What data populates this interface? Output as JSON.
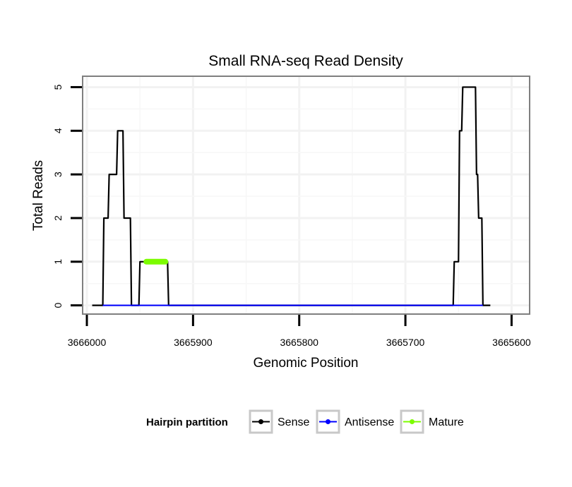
{
  "chart_data": {
    "type": "line",
    "title": "Small RNA-seq Read Density",
    "xlabel": "Genomic Position",
    "ylabel": "Total Reads",
    "x_reversed": true,
    "xlim": [
      3666004,
      3665583
    ],
    "ylim": [
      -0.2,
      5.25
    ],
    "x_ticks": [
      3666000,
      3665900,
      3665800,
      3665700,
      3665600
    ],
    "x_tick_labels": [
      "3666000",
      "3665900",
      "3665800",
      "3665700",
      "3665600"
    ],
    "y_ticks": [
      0,
      1,
      2,
      3,
      4,
      5
    ],
    "y_tick_labels": [
      "0",
      "1",
      "2",
      "3",
      "4",
      "5"
    ],
    "grid": true,
    "legend": {
      "title": "Hairpin partition",
      "position": "bottom",
      "entries": [
        {
          "name": "Sense",
          "color": "#000000"
        },
        {
          "name": "Antisense",
          "color": "#0000ff"
        },
        {
          "name": "Mature",
          "color": "#7cfc00"
        }
      ]
    },
    "series": [
      {
        "name": "Sense",
        "color": "#000000",
        "x": [
          3665995,
          3665985,
          3665984,
          3665980,
          3665979,
          3665972,
          3665971,
          3665966,
          3665965,
          3665959,
          3665958,
          3665951,
          3665950,
          3665945,
          3665944,
          3665938,
          3665937,
          3665924,
          3665923,
          3665655,
          3665654,
          3665650,
          3665649,
          3665647,
          3665646,
          3665645,
          3665644,
          3665634,
          3665633,
          3665632,
          3665631,
          3665628,
          3665627,
          3665625,
          3665624,
          3665620
        ],
        "y": [
          0,
          0,
          2,
          2,
          3,
          3,
          4,
          4,
          2,
          2,
          0,
          0,
          1,
          1,
          1,
          1,
          1,
          1,
          0,
          0,
          1,
          1,
          4,
          4,
          5,
          5,
          5,
          5,
          3,
          3,
          2,
          2,
          0,
          0,
          0,
          0
        ]
      },
      {
        "name": "Antisense",
        "color": "#0000ff",
        "x": [
          3665985,
          3665952,
          3665654,
          3665627
        ],
        "y": [
          0,
          0,
          0,
          0
        ]
      },
      {
        "name": "Mature",
        "color": "#7cfc00",
        "x": [
          3665944,
          3665938,
          3665932,
          3665926
        ],
        "y": [
          1,
          1,
          1,
          1
        ]
      }
    ]
  }
}
